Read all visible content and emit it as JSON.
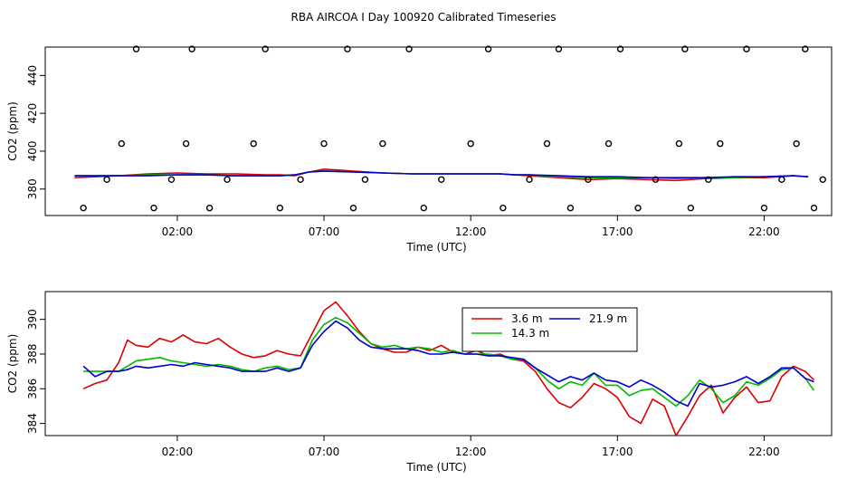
{
  "title": "RBA AIRCOA I  Day 100920  Calibrated Timeseries",
  "chart_data": [
    {
      "type": "line",
      "xlabel": "Time (UTC)",
      "ylabel": "CO2 (ppm)",
      "xlim": [
        -2.5,
        24.3
      ],
      "ylim": [
        366,
        455
      ],
      "xticks": [
        2,
        7,
        12,
        17,
        22
      ],
      "xtick_labels": [
        "02:00",
        "07:00",
        "12:00",
        "17:00",
        "22:00"
      ],
      "yticks": [
        380,
        400,
        420,
        440
      ],
      "ytick_labels": [
        "380",
        "400",
        "420",
        "440"
      ],
      "grid": false,
      "series": [
        {
          "color": "#dd0000",
          "x": [
            -1.5,
            0,
            1,
            2,
            3,
            4,
            5,
            5.5,
            6,
            6.5,
            7,
            8,
            9,
            10,
            11,
            12,
            13,
            13.5,
            14,
            15,
            16,
            17,
            18,
            19,
            20,
            21,
            22,
            23,
            23.5
          ],
          "y": [
            386,
            387,
            388,
            388.5,
            388,
            388,
            387.5,
            387.5,
            387,
            389,
            390.5,
            389.5,
            388.5,
            388,
            388,
            388,
            388,
            387.5,
            387,
            386,
            385,
            385.5,
            385,
            384.5,
            385.5,
            386,
            386,
            387,
            386.5
          ]
        },
        {
          "color": "#00bb00",
          "x": [
            -1.5,
            0,
            1,
            2,
            3,
            4,
            5,
            5.5,
            6,
            6.5,
            7,
            8,
            9,
            10,
            11,
            12,
            13,
            13.5,
            14,
            15,
            16,
            17,
            18,
            19,
            20,
            21,
            22,
            23,
            23.5
          ],
          "y": [
            387,
            387,
            387.5,
            387.5,
            387.5,
            387,
            387,
            387,
            387.5,
            389,
            389.5,
            389,
            388.5,
            388,
            388,
            388,
            388,
            387.5,
            387.5,
            386.5,
            386,
            386,
            386,
            385.5,
            386,
            386,
            386.5,
            387,
            386.5
          ]
        },
        {
          "color": "#0000cc",
          "x": [
            -1.5,
            0,
            1,
            2,
            3,
            4,
            5,
            5.5,
            6,
            6.5,
            7,
            8,
            9,
            10,
            11,
            12,
            13,
            13.5,
            14,
            15,
            16,
            17,
            18,
            19,
            20,
            21,
            22,
            23,
            23.5
          ],
          "y": [
            387,
            387,
            387,
            387.5,
            387.5,
            387,
            387,
            387,
            387.5,
            389,
            389.5,
            389,
            388.5,
            388,
            388,
            388,
            388,
            387.5,
            387.5,
            387,
            386.5,
            386.5,
            386,
            386,
            386,
            386.5,
            386.5,
            387,
            386.5
          ]
        }
      ],
      "points": {
        "x": [
          -1.2,
          -0.4,
          0.1,
          0.6,
          1.2,
          1.8,
          2.3,
          2.5,
          3.1,
          3.7,
          4.6,
          5.0,
          5.5,
          6.2,
          7.0,
          7.8,
          8.0,
          8.4,
          9.0,
          9.9,
          10.4,
          11.0,
          12.0,
          12.6,
          13.1,
          14.0,
          14.6,
          15.0,
          15.4,
          16.0,
          16.7,
          17.1,
          17.7,
          18.3,
          19.1,
          19.3,
          19.5,
          20.1,
          20.5,
          21.4,
          22.0,
          22.6,
          23.1,
          23.4,
          23.7,
          24.0
        ],
        "y": [
          370,
          385,
          404,
          454,
          370,
          385,
          404,
          454,
          370,
          385,
          404,
          454,
          370,
          385,
          404,
          454,
          370,
          385,
          404,
          454,
          370,
          385,
          404,
          454,
          370,
          385,
          404,
          454,
          370,
          385,
          404,
          454,
          370,
          385,
          404,
          454,
          370,
          385,
          404,
          454,
          370,
          385,
          404,
          454,
          370,
          385
        ]
      }
    },
    {
      "type": "line",
      "xlabel": "Time (UTC)",
      "ylabel": "CO2 (ppm)",
      "xlim": [
        -2.5,
        24.3
      ],
      "ylim": [
        383.3,
        391.6
      ],
      "xticks": [
        2,
        7,
        12,
        17,
        22
      ],
      "xtick_labels": [
        "02:00",
        "07:00",
        "12:00",
        "17:00",
        "22:00"
      ],
      "yticks": [
        384,
        386,
        388,
        390
      ],
      "ytick_labels": [
        "384",
        "386",
        "388",
        "390"
      ],
      "grid": false,
      "legend": {
        "position": "top-right"
      },
      "series": [
        {
          "name": "3.6 m",
          "color": "#dd0000",
          "x": [
            -1.2,
            -0.8,
            -0.4,
            0,
            0.3,
            0.6,
            1,
            1.4,
            1.8,
            2.2,
            2.6,
            3,
            3.4,
            3.8,
            4.2,
            4.6,
            5,
            5.4,
            5.8,
            6.2,
            6.6,
            7,
            7.4,
            7.8,
            8.2,
            8.6,
            9,
            9.4,
            9.8,
            10.2,
            10.6,
            11,
            11.4,
            11.8,
            12.2,
            12.6,
            13,
            13.4,
            13.8,
            14.2,
            14.6,
            15,
            15.4,
            15.8,
            16.2,
            16.6,
            17,
            17.4,
            17.8,
            18.2,
            18.6,
            19,
            19.4,
            19.8,
            20.2,
            20.6,
            21,
            21.4,
            21.8,
            22.2,
            22.6,
            23,
            23.4,
            23.7
          ],
          "y": [
            386.0,
            386.3,
            386.5,
            387.5,
            388.8,
            388.5,
            388.4,
            388.9,
            388.7,
            389.1,
            388.7,
            388.6,
            388.9,
            388.4,
            388.0,
            387.8,
            387.9,
            388.2,
            388.0,
            387.9,
            389.2,
            390.5,
            391.0,
            390.2,
            389.3,
            388.6,
            388.3,
            388.1,
            388.1,
            388.4,
            388.2,
            388.5,
            388.1,
            388.0,
            388.2,
            387.9,
            388.0,
            387.7,
            387.6,
            387.0,
            386.0,
            385.2,
            384.9,
            385.5,
            386.3,
            386.0,
            385.5,
            384.4,
            384.0,
            385.4,
            385.0,
            383.3,
            384.4,
            385.6,
            386.2,
            384.6,
            385.5,
            386.1,
            385.2,
            385.3,
            386.7,
            387.3,
            387.0,
            386.5
          ]
        },
        {
          "name": "14.3 m",
          "color": "#00bb00",
          "x": [
            -1.2,
            -0.8,
            -0.4,
            0,
            0.3,
            0.6,
            1,
            1.4,
            1.8,
            2.2,
            2.6,
            3,
            3.4,
            3.8,
            4.2,
            4.6,
            5,
            5.4,
            5.8,
            6.2,
            6.6,
            7,
            7.4,
            7.8,
            8.2,
            8.6,
            9,
            9.4,
            9.8,
            10.2,
            10.6,
            11,
            11.4,
            11.8,
            12.2,
            12.6,
            13,
            13.4,
            13.8,
            14.2,
            14.6,
            15,
            15.4,
            15.8,
            16.2,
            16.6,
            17,
            17.4,
            17.8,
            18.2,
            18.6,
            19,
            19.4,
            19.8,
            20.2,
            20.6,
            21,
            21.4,
            21.8,
            22.2,
            22.6,
            23,
            23.4,
            23.7
          ],
          "y": [
            387.0,
            387.0,
            387.0,
            387.0,
            387.3,
            387.6,
            387.7,
            387.8,
            387.6,
            387.5,
            387.4,
            387.3,
            387.4,
            387.3,
            387.1,
            387.0,
            387.2,
            387.3,
            387.1,
            387.2,
            388.8,
            389.7,
            390.1,
            389.8,
            389.2,
            388.6,
            388.4,
            388.5,
            388.3,
            388.4,
            388.3,
            388.1,
            388.2,
            388.0,
            388.0,
            388.0,
            387.9,
            387.7,
            387.7,
            387.2,
            386.5,
            386.0,
            386.4,
            386.2,
            386.9,
            386.2,
            386.2,
            385.6,
            385.9,
            386.0,
            385.5,
            385.0,
            385.6,
            386.5,
            386.0,
            385.2,
            385.6,
            386.4,
            386.2,
            386.6,
            387.1,
            387.2,
            386.6,
            385.9
          ]
        },
        {
          "name": "21.9 m",
          "color": "#0000cc",
          "x": [
            -1.2,
            -0.8,
            -0.4,
            0,
            0.3,
            0.6,
            1,
            1.4,
            1.8,
            2.2,
            2.6,
            3,
            3.4,
            3.8,
            4.2,
            4.6,
            5,
            5.4,
            5.8,
            6.2,
            6.6,
            7,
            7.4,
            7.8,
            8.2,
            8.6,
            9,
            9.4,
            9.8,
            10.2,
            10.6,
            11,
            11.4,
            11.8,
            12.2,
            12.6,
            13,
            13.4,
            13.8,
            14.2,
            14.6,
            15,
            15.4,
            15.8,
            16.2,
            16.6,
            17,
            17.4,
            17.8,
            18.2,
            18.6,
            19,
            19.4,
            19.8,
            20.2,
            20.6,
            21,
            21.4,
            21.8,
            22.2,
            22.6,
            23,
            23.4,
            23.7
          ],
          "y": [
            387.3,
            386.7,
            387.0,
            387.0,
            387.1,
            387.3,
            387.2,
            387.3,
            387.4,
            387.3,
            387.5,
            387.4,
            387.3,
            387.2,
            387.0,
            387.0,
            387.0,
            387.2,
            387.0,
            387.2,
            388.5,
            389.3,
            389.9,
            389.5,
            388.8,
            388.4,
            388.3,
            388.3,
            388.3,
            388.2,
            388.0,
            388.0,
            388.1,
            388.0,
            388.0,
            387.9,
            387.9,
            387.8,
            387.7,
            387.2,
            386.8,
            386.4,
            386.7,
            386.5,
            386.9,
            386.5,
            386.4,
            386.1,
            386.5,
            386.2,
            385.8,
            385.3,
            385.0,
            386.3,
            386.1,
            386.2,
            386.4,
            386.7,
            386.3,
            386.7,
            387.2,
            387.2,
            386.6,
            386.4
          ]
        }
      ]
    }
  ]
}
